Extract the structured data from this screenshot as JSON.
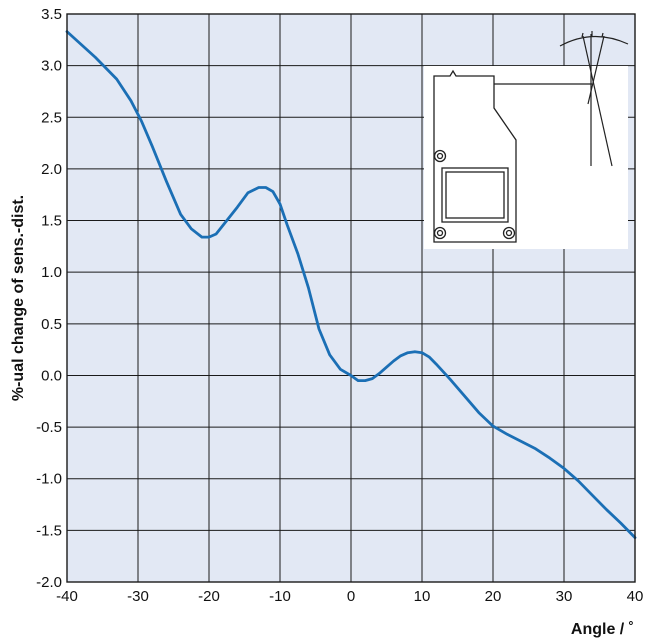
{
  "colors": {
    "plot_background": "#e2e8f4",
    "grid": "#1a1a1a",
    "line": "#1b6fb5",
    "sensor_fill": "#ffffff",
    "sensor_stroke": "#222222"
  },
  "chart_data": {
    "type": "line",
    "xlabel": "Angle / ˚",
    "ylabel": "%-ual change of sens.-dist.",
    "xlim": [
      -40,
      40
    ],
    "ylim": [
      -2.0,
      3.5
    ],
    "x_ticks": [
      "-40",
      "-30",
      "-20",
      "-10",
      "0",
      "10",
      "20",
      "30",
      "40"
    ],
    "y_ticks": [
      "-2.0",
      "-1.5",
      "-1.0",
      "-0.5",
      "0.0",
      "0.5",
      "1.0",
      "1.5",
      "2.0",
      "2.5",
      "3.0",
      "3.5"
    ],
    "grid": true,
    "inset": "sensor-tilt-diagram",
    "series": [
      {
        "x": [
          -40,
          -36,
          -33,
          -31,
          -29.5,
          -28,
          -26,
          -24,
          -22.5,
          -21,
          -20,
          -19,
          -17.5,
          -16,
          -14.5,
          -13,
          -12,
          -11,
          -10,
          -9,
          -7.5,
          -6,
          -4.5,
          -3,
          -1.5,
          0,
          1,
          2,
          3,
          4,
          5,
          6,
          7,
          8,
          9,
          10,
          11,
          12,
          14,
          16,
          18,
          20,
          22,
          24,
          26,
          28,
          30,
          32,
          34,
          36,
          38,
          40
        ],
        "y": [
          3.33,
          3.08,
          2.87,
          2.66,
          2.46,
          2.22,
          1.88,
          1.56,
          1.42,
          1.34,
          1.34,
          1.37,
          1.5,
          1.63,
          1.77,
          1.82,
          1.82,
          1.78,
          1.66,
          1.46,
          1.18,
          0.85,
          0.45,
          0.2,
          0.06,
          0.0,
          -0.05,
          -0.05,
          -0.03,
          0.02,
          0.08,
          0.14,
          0.19,
          0.22,
          0.23,
          0.22,
          0.18,
          0.11,
          -0.04,
          -0.2,
          -0.36,
          -0.49,
          -0.57,
          -0.64,
          -0.71,
          -0.8,
          -0.9,
          -1.02,
          -1.16,
          -1.3,
          -1.43,
          -1.57
        ]
      }
    ]
  }
}
